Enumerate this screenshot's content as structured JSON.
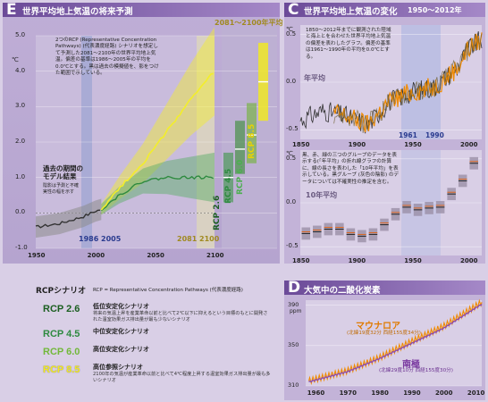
{
  "colors": {
    "page_bg": "#d9cfe6",
    "panel_bg": "#c3b3d8",
    "yellow": "#f3ee2a",
    "green": "#2e8a40",
    "orange": "#f08a00",
    "purple_line": "#8a4ab0",
    "blue_year": "#2a3b8f"
  },
  "panel_e": {
    "letter": "E",
    "title": "世界平均地上気温の将来予測",
    "period_label": "2081～2100年平均",
    "y_unit": "℃",
    "note": "2つのRCP (Representative Concentration Pathways) (代表濃度経路) シナリオを想定して予測した2081～2100年の世界平均地上気温。偏差の基準は1986～2005年の平均を0.0℃とする。黒は過去の模擬値を、影をつけた範囲で示している。",
    "note_highlight": "2081～2100年",
    "past_model_label": "過去の期間の\nモデル結果",
    "past_model_sub": "陰影は予測と不確実性の幅を示す",
    "baseline_label": "1986 2005",
    "future_label": "2081 2100",
    "y_ticks": [
      "5.0",
      "4.0",
      "3.0",
      "2.0",
      "1.0",
      "0.0",
      "-1.0"
    ],
    "x_ticks": [
      "1950",
      "2000",
      "2050",
      "2100"
    ]
  },
  "panel_c": {
    "letter": "C",
    "title": "世界平均地上気温の変化",
    "period": "1950～2012年",
    "note_top": "1850～2012年までに観測された陸域と海上とを合わせた世界平均地上気温の偏差を表わしたグラフ。偏差の基準は1961～1990年の平均を0.0℃とする。",
    "note_highlight": "1961～1990年",
    "annual_label": "年平均",
    "decadal_label": "10年平均",
    "note_bottom": "黒、赤、緑の三つのグループのデータを表示する(「年平均」の折れ線グラフの計算に、線の長さを表わした「10年平均」を表示している。黒グループ (灰色の陰影) のデータについては不確実性の推定を含む。",
    "year_1961": "1961",
    "year_1990": "1990",
    "y_ticks_top": [
      "0.5",
      "0.0",
      "-0.5"
    ],
    "y_ticks_bottom": [
      "0.5",
      "0.0",
      "-0.5"
    ],
    "x_ticks": [
      "1850",
      "1900",
      "1950",
      "2000"
    ],
    "y_unit": "℃"
  },
  "panel_d": {
    "letter": "D",
    "title": "大気中の二酸化炭素",
    "y_unit": "ppm",
    "series_a": "マウナロア",
    "series_a_loc": "(北緯19度32分 西経155度34分)",
    "series_b": "南極",
    "series_b_loc": "(北緯29度10分 西経155度30分)",
    "y_ticks": [
      "390",
      "350",
      "310"
    ],
    "x_ticks": [
      "1960",
      "1970",
      "1980",
      "1990",
      "2000",
      "2010"
    ]
  },
  "legend": {
    "heading": "RCPシナリオ",
    "heading_note": "RCP = Representative Concentration Pathways (代表濃度経路)",
    "items": [
      {
        "name": "RCP 2.6",
        "title": "低位安定化シナリオ",
        "desc": "将来の気温上昇を産業革命以前と比べて2℃以下に抑えるという目標のもとに開発された温室効果ガス排出量が最も少ないシナリオ",
        "color": "#1b5e20"
      },
      {
        "name": "RCP 4.5",
        "title": "中位安定化シナリオ",
        "desc": "",
        "color": "#2e8a40"
      },
      {
        "name": "RCP 6.0",
        "title": "高位安定化シナリオ",
        "desc": "",
        "color": "#72b83a"
      },
      {
        "name": "RCP 8.5",
        "title": "高位参照シナリオ",
        "desc": "2100年の気温が産業革命以前と比べて4℃程度上昇する温室効果ガス排出量が最も多いシナリオ",
        "color": "#f0e825"
      }
    ]
  },
  "chart_data": [
    {
      "type": "line",
      "title": "世界平均地上気温の将来予測",
      "ylabel": "℃",
      "xlim": [
        1950,
        2100
      ],
      "ylim": [
        -1.0,
        5.0
      ],
      "series": [
        {
          "name": "過去の期間のモデル結果",
          "x": [
            1950,
            1960,
            1970,
            1980,
            1990,
            2000,
            2005
          ],
          "y": [
            -0.4,
            -0.35,
            -0.3,
            -0.2,
            -0.1,
            0.05,
            0.1
          ]
        },
        {
          "name": "RCP 2.6",
          "x": [
            2005,
            2020,
            2040,
            2060,
            2080,
            2100
          ],
          "y": [
            0.1,
            0.5,
            0.9,
            1.0,
            1.0,
            1.0
          ]
        },
        {
          "name": "RCP 8.5",
          "x": [
            2005,
            2020,
            2040,
            2060,
            2080,
            2100
          ],
          "y": [
            0.1,
            0.7,
            1.4,
            2.3,
            3.2,
            4.0
          ]
        }
      ],
      "period_bars": [
        {
          "name": "RCP 2.6",
          "low": 0.3,
          "mean": 1.0,
          "high": 1.7
        },
        {
          "name": "RCP 4.5",
          "low": 1.1,
          "mean": 1.8,
          "high": 2.6
        },
        {
          "name": "RCP 6.0",
          "low": 1.4,
          "mean": 2.2,
          "high": 3.1
        },
        {
          "name": "RCP 8.5",
          "low": 2.6,
          "mean": 3.7,
          "high": 4.8
        }
      ]
    },
    {
      "type": "line",
      "title": "世界平均地上気温の変化 年平均",
      "ylabel": "℃",
      "xlim": [
        1850,
        2012
      ],
      "ylim": [
        -0.6,
        0.6
      ],
      "series": [
        {
          "name": "年平均",
          "x": [
            1850,
            1870,
            1890,
            1910,
            1930,
            1950,
            1970,
            1990,
            2000,
            2012
          ],
          "y": [
            -0.4,
            -0.3,
            -0.35,
            -0.45,
            -0.2,
            -0.1,
            -0.05,
            0.15,
            0.35,
            0.45
          ]
        }
      ]
    },
    {
      "type": "bar",
      "title": "世界平均地上気温の変化 10年平均",
      "ylabel": "℃",
      "categories": [
        "1850s",
        "1860s",
        "1870s",
        "1880s",
        "1890s",
        "1900s",
        "1910s",
        "1920s",
        "1930s",
        "1940s",
        "1950s",
        "1960s",
        "1970s",
        "1980s",
        "1990s",
        "2000s"
      ],
      "values": [
        -0.35,
        -0.33,
        -0.3,
        -0.3,
        -0.36,
        -0.38,
        -0.36,
        -0.25,
        -0.13,
        -0.05,
        -0.08,
        -0.06,
        -0.05,
        0.1,
        0.25,
        0.45
      ],
      "ylim": [
        -0.6,
        0.6
      ]
    },
    {
      "type": "line",
      "title": "大気中の二酸化炭素",
      "ylabel": "ppm",
      "xlim": [
        1957,
        2012
      ],
      "ylim": [
        310,
        395
      ],
      "series": [
        {
          "name": "マウナロア",
          "x": [
            1958,
            1970,
            1980,
            1990,
            2000,
            2010,
            2012
          ],
          "y": [
            315,
            325,
            338,
            354,
            369,
            389,
            393
          ]
        },
        {
          "name": "南極",
          "x": [
            1958,
            1970,
            1980,
            1990,
            2000,
            2010,
            2012
          ],
          "y": [
            314,
            324,
            337,
            352,
            367,
            387,
            391
          ]
        }
      ]
    }
  ]
}
